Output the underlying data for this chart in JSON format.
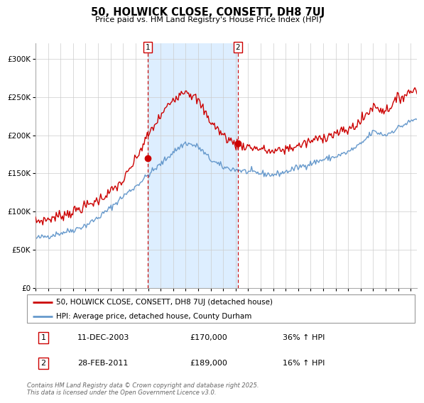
{
  "title": "50, HOLWICK CLOSE, CONSETT, DH8 7UJ",
  "subtitle": "Price paid vs. HM Land Registry's House Price Index (HPI)",
  "legend_line1": "50, HOLWICK CLOSE, CONSETT, DH8 7UJ (detached house)",
  "legend_line2": "HPI: Average price, detached house, County Durham",
  "annotation1_date": "11-DEC-2003",
  "annotation1_price": "£170,000",
  "annotation1_hpi": "36% ↑ HPI",
  "annotation2_date": "28-FEB-2011",
  "annotation2_price": "£189,000",
  "annotation2_hpi": "16% ↑ HPI",
  "footer": "Contains HM Land Registry data © Crown copyright and database right 2025.\nThis data is licensed under the Open Government Licence v3.0.",
  "ylim": [
    0,
    320000
  ],
  "yticks": [
    0,
    50000,
    100000,
    150000,
    200000,
    250000,
    300000
  ],
  "ytick_labels": [
    "£0",
    "£50K",
    "£100K",
    "£150K",
    "£200K",
    "£250K",
    "£300K"
  ],
  "red_color": "#cc0000",
  "blue_color": "#6699cc",
  "blue_fill": "#ddeeff",
  "sale1_x": 2003.95,
  "sale1_y": 170000,
  "sale2_x": 2011.17,
  "sale2_y": 189000,
  "xmin": 1995.0,
  "xmax": 2025.5,
  "xticks": [
    1995,
    1996,
    1997,
    1998,
    1999,
    2000,
    2001,
    2002,
    2003,
    2004,
    2005,
    2006,
    2007,
    2008,
    2009,
    2010,
    2011,
    2012,
    2013,
    2014,
    2015,
    2016,
    2017,
    2018,
    2019,
    2020,
    2021,
    2022,
    2023,
    2024,
    2025
  ],
  "hpi_anchors_x": [
    1995,
    1996,
    1997,
    1998,
    1999,
    2000,
    2001,
    2002,
    2003,
    2004,
    2005,
    2006,
    2007,
    2008,
    2009,
    2010,
    2011,
    2012,
    2013,
    2014,
    2015,
    2016,
    2017,
    2018,
    2019,
    2020,
    2021,
    2022,
    2023,
    2024,
    2025.5
  ],
  "hpi_anchors_y": [
    65000,
    68000,
    72000,
    76000,
    82000,
    92000,
    105000,
    120000,
    133000,
    148000,
    162000,
    178000,
    190000,
    185000,
    168000,
    158000,
    155000,
    152000,
    150000,
    148000,
    152000,
    158000,
    163000,
    168000,
    172000,
    178000,
    188000,
    205000,
    200000,
    210000,
    222000
  ],
  "red_anchors_x": [
    1995,
    1996,
    1997,
    1998,
    1999,
    2000,
    2001,
    2002,
    2003,
    2004,
    2005,
    2006,
    2007,
    2008,
    2009,
    2010,
    2011,
    2012,
    2013,
    2014,
    2015,
    2016,
    2017,
    2018,
    2019,
    2020,
    2021,
    2022,
    2023,
    2024,
    2025.5
  ],
  "red_anchors_y": [
    87000,
    90000,
    95000,
    100000,
    107000,
    115000,
    126000,
    140000,
    168000,
    200000,
    225000,
    248000,
    260000,
    245000,
    218000,
    200000,
    188000,
    185000,
    182000,
    178000,
    182000,
    186000,
    192000,
    198000,
    202000,
    207000,
    218000,
    238000,
    232000,
    248000,
    262000
  ],
  "hpi_noise_seed": 42,
  "hpi_noise_scale": 2000,
  "red_noise_seed": 7,
  "red_noise_scale": 3500,
  "n_points": 370
}
